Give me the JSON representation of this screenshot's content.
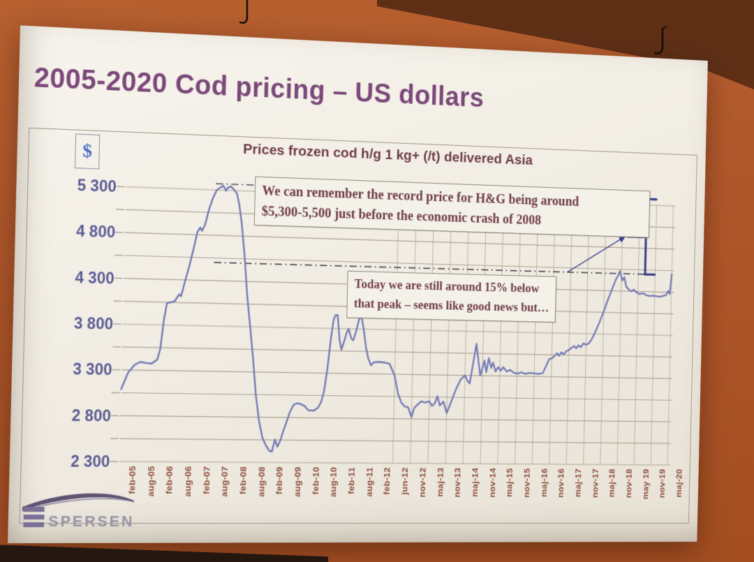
{
  "photo": {
    "wall_color": "#b0572a",
    "beam_color": "#5e2f15",
    "hook_icon": "ceiling-hook"
  },
  "slide": {
    "title": "2005-2020 Cod pricing – US dollars",
    "title_color": "#7a4879",
    "logo": {
      "brand": "ESPERSEN",
      "text": "SPERSEN"
    },
    "annotations": [
      {
        "line1": "We can remember the record price for H&G being around",
        "line2": "$5,300-5,500 just before the economic crash of 2008"
      },
      {
        "line1": "Today we are still around 15% below",
        "line2": "that peak – seems like good news but…"
      }
    ]
  },
  "chart_data": {
    "type": "line",
    "title": "Prices frozen cod h/g 1 kg+ (/t) delivered Asia",
    "legend": {
      "position": "top-left",
      "entries": [
        {
          "label": "$",
          "color": "#4a6fc4"
        }
      ]
    },
    "y_axis": {
      "min": 2300,
      "max": 5300,
      "major_tick_interval": 500,
      "minor_tick_interval": 250,
      "labels": [
        "5 300",
        "4 800",
        "4 300",
        "3 800",
        "3 300",
        "2 800",
        "2 300"
      ],
      "label_color": "#5c5c94"
    },
    "x_axis": {
      "labels": [
        "feb-05",
        "aug-05",
        "feb-06",
        "aug-06",
        "feb-07",
        "aug-07",
        "feb-08",
        "aug-08",
        "feb-09",
        "aug-09",
        "feb-10",
        "aug-10",
        "feb-11",
        "aug-11",
        "feb-12",
        "jun-12",
        "nov-12",
        "maj-13",
        "nov-13",
        "maj-14",
        "nov-14",
        "maj-15",
        "nov-15",
        "maj-16",
        "nov-16",
        "maj-17",
        "nov-17",
        "maj-18",
        "nov-18",
        "may 19",
        "nov-19",
        "maj-20"
      ],
      "label_color": "#8d4f3e",
      "vertical_gridlines_from_label": "jun-12"
    },
    "grid": {
      "horizontal": true,
      "vertical_partial": true,
      "color": "#ab9f90"
    },
    "series": [
      {
        "name": "$",
        "color": "#757cb5",
        "points": [
          [
            0,
            3090
          ],
          [
            0.35,
            3270
          ],
          [
            0.7,
            3360
          ],
          [
            1,
            3390
          ],
          [
            1.3,
            3380
          ],
          [
            1.6,
            3375
          ],
          [
            1.9,
            3420
          ],
          [
            2.05,
            3540
          ],
          [
            2.2,
            3850
          ],
          [
            2.35,
            4040
          ],
          [
            2.55,
            4050
          ],
          [
            2.75,
            4060
          ],
          [
            2.9,
            4110
          ],
          [
            3,
            4140
          ],
          [
            3.1,
            4120
          ],
          [
            3.3,
            4290
          ],
          [
            3.5,
            4450
          ],
          [
            3.7,
            4630
          ],
          [
            3.9,
            4830
          ],
          [
            4.05,
            4880
          ],
          [
            4.15,
            4845
          ],
          [
            4.3,
            4910
          ],
          [
            4.5,
            5080
          ],
          [
            4.7,
            5210
          ],
          [
            4.9,
            5300
          ],
          [
            5.1,
            5330
          ],
          [
            5.25,
            5350
          ],
          [
            5.4,
            5295
          ],
          [
            5.5,
            5330
          ],
          [
            5.65,
            5345
          ],
          [
            5.8,
            5320
          ],
          [
            6,
            5270
          ],
          [
            6.15,
            5140
          ],
          [
            6.3,
            4940
          ],
          [
            6.5,
            4580
          ],
          [
            6.7,
            4130
          ],
          [
            6.9,
            3790
          ],
          [
            7.1,
            3440
          ],
          [
            7.3,
            3040
          ],
          [
            7.5,
            2760
          ],
          [
            7.7,
            2580
          ],
          [
            7.9,
            2490
          ],
          [
            8.1,
            2430
          ],
          [
            8.25,
            2420
          ],
          [
            8.4,
            2555
          ],
          [
            8.55,
            2475
          ],
          [
            8.7,
            2545
          ],
          [
            8.85,
            2650
          ],
          [
            9,
            2740
          ],
          [
            9.2,
            2865
          ],
          [
            9.4,
            2945
          ],
          [
            9.6,
            2960
          ],
          [
            9.8,
            2950
          ],
          [
            10,
            2930
          ],
          [
            10.2,
            2885
          ],
          [
            10.5,
            2880
          ],
          [
            10.75,
            2915
          ],
          [
            10.9,
            2975
          ],
          [
            11.05,
            3090
          ],
          [
            11.2,
            3320
          ],
          [
            11.35,
            3640
          ],
          [
            11.5,
            3900
          ],
          [
            11.6,
            3950
          ],
          [
            11.72,
            3950
          ],
          [
            11.85,
            3680
          ],
          [
            11.97,
            3565
          ],
          [
            12.1,
            3650
          ],
          [
            12.25,
            3760
          ],
          [
            12.35,
            3800
          ],
          [
            12.5,
            3695
          ],
          [
            12.62,
            3670
          ],
          [
            12.78,
            3780
          ],
          [
            12.92,
            3905
          ],
          [
            13.05,
            3955
          ],
          [
            13.2,
            3790
          ],
          [
            13.35,
            3590
          ],
          [
            13.5,
            3465
          ],
          [
            13.65,
            3395
          ],
          [
            13.8,
            3430
          ],
          [
            14.1,
            3435
          ],
          [
            14.4,
            3430
          ],
          [
            14.7,
            3415
          ],
          [
            15,
            3280
          ],
          [
            15.2,
            3090
          ],
          [
            15.4,
            2985
          ],
          [
            15.6,
            2940
          ],
          [
            15.8,
            2930
          ],
          [
            16,
            2820
          ],
          [
            16.15,
            2925
          ],
          [
            16.35,
            2965
          ],
          [
            16.55,
            3000
          ],
          [
            16.75,
            2985
          ],
          [
            17,
            3000
          ],
          [
            17.15,
            2950
          ],
          [
            17.3,
            2975
          ],
          [
            17.45,
            3060
          ],
          [
            17.6,
            2955
          ],
          [
            17.8,
            3000
          ],
          [
            18,
            2870
          ],
          [
            18.25,
            3000
          ],
          [
            18.5,
            3140
          ],
          [
            18.75,
            3250
          ],
          [
            19,
            3300
          ],
          [
            19.15,
            3240
          ],
          [
            19.28,
            3210
          ],
          [
            19.45,
            3430
          ],
          [
            19.62,
            3660
          ],
          [
            19.78,
            3430
          ],
          [
            19.88,
            3300
          ],
          [
            20,
            3390
          ],
          [
            20.1,
            3470
          ],
          [
            20.22,
            3340
          ],
          [
            20.35,
            3500
          ],
          [
            20.5,
            3390
          ],
          [
            20.6,
            3450
          ],
          [
            20.75,
            3350
          ],
          [
            20.9,
            3400
          ],
          [
            21.05,
            3360
          ],
          [
            21.2,
            3400
          ],
          [
            21.4,
            3350
          ],
          [
            21.6,
            3370
          ],
          [
            21.8,
            3340
          ],
          [
            22,
            3330
          ],
          [
            22.25,
            3345
          ],
          [
            22.5,
            3330
          ],
          [
            22.75,
            3340
          ],
          [
            23,
            3335
          ],
          [
            23.25,
            3330
          ],
          [
            23.5,
            3340
          ],
          [
            23.7,
            3430
          ],
          [
            23.85,
            3500
          ],
          [
            24,
            3510
          ],
          [
            24.15,
            3535
          ],
          [
            24.3,
            3570
          ],
          [
            24.42,
            3540
          ],
          [
            24.55,
            3580
          ],
          [
            24.7,
            3560
          ],
          [
            24.85,
            3595
          ],
          [
            25,
            3610
          ],
          [
            25.15,
            3635
          ],
          [
            25.3,
            3655
          ],
          [
            25.42,
            3630
          ],
          [
            25.55,
            3665
          ],
          [
            25.7,
            3645
          ],
          [
            25.85,
            3690
          ],
          [
            26,
            3670
          ],
          [
            26.15,
            3690
          ],
          [
            26.3,
            3730
          ],
          [
            26.45,
            3790
          ],
          [
            26.6,
            3860
          ],
          [
            26.75,
            3930
          ],
          [
            26.9,
            4010
          ],
          [
            27.05,
            4090
          ],
          [
            27.2,
            4180
          ],
          [
            27.35,
            4260
          ],
          [
            27.5,
            4340
          ],
          [
            27.65,
            4420
          ],
          [
            27.8,
            4480
          ],
          [
            27.9,
            4530
          ],
          [
            28.05,
            4420
          ],
          [
            28.17,
            4460
          ],
          [
            28.3,
            4350
          ],
          [
            28.45,
            4320
          ],
          [
            28.6,
            4300
          ],
          [
            28.75,
            4320
          ],
          [
            28.9,
            4290
          ],
          [
            29.1,
            4270
          ],
          [
            29.3,
            4280
          ],
          [
            29.5,
            4260
          ],
          [
            29.7,
            4250
          ],
          [
            29.9,
            4255
          ],
          [
            30.1,
            4250
          ],
          [
            30.3,
            4245
          ],
          [
            30.5,
            4255
          ],
          [
            30.68,
            4265
          ],
          [
            30.8,
            4315
          ],
          [
            30.9,
            4280
          ],
          [
            31,
            4510
          ]
        ]
      }
    ],
    "reference_lines": [
      {
        "name": "record-peak-level",
        "value": 5370,
        "style": "dash-dot",
        "color": "#4a4a52"
      },
      {
        "name": "current-level-15-percent-below-peak",
        "value": 4500,
        "style": "dash-dot",
        "color": "#4a4a52"
      }
    ],
    "range_bracket": {
      "at_tick": 29.4,
      "from_value": 5370,
      "to_value": 4500,
      "color": "#3a3f8e"
    },
    "arrow": {
      "from": [
        24.8,
        4500
      ],
      "to": [
        28.2,
        4930
      ],
      "color": "#3a3f8e"
    }
  }
}
